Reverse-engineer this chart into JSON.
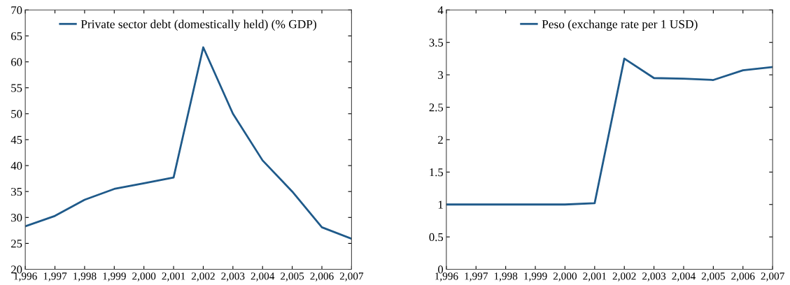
{
  "chart_data": [
    {
      "type": "line",
      "x": [
        1996,
        1997,
        1998,
        1999,
        2000,
        2001,
        2002,
        2003,
        2004,
        2005,
        2006,
        2007
      ],
      "series": [
        {
          "name": "Private sector debt (domestically held) (% GDP)",
          "color": "#1f5a8a",
          "values": [
            28.3,
            30.3,
            33.4,
            35.5,
            36.6,
            37.7,
            62.8,
            50.0,
            41.0,
            35.0,
            28.1,
            25.9
          ]
        }
      ],
      "xlim": [
        1996,
        2007
      ],
      "xticks": [
        {
          "value": 1996,
          "label": "1,996"
        },
        {
          "value": 1997,
          "label": "1,997"
        },
        {
          "value": 1998,
          "label": "1,998"
        },
        {
          "value": 1999,
          "label": "1,999"
        },
        {
          "value": 2000,
          "label": "2,000"
        },
        {
          "value": 2001,
          "label": "2,001"
        },
        {
          "value": 2002,
          "label": "2,002"
        },
        {
          "value": 2003,
          "label": "2,003"
        },
        {
          "value": 2004,
          "label": "2,004"
        },
        {
          "value": 2005,
          "label": "2,005"
        },
        {
          "value": 2006,
          "label": "2,006"
        },
        {
          "value": 2007,
          "label": "2,007"
        }
      ],
      "ylim": [
        20,
        70
      ],
      "yticks": [
        20,
        25,
        30,
        35,
        40,
        45,
        50,
        55,
        60,
        65,
        70
      ],
      "legend": "top",
      "grid": false,
      "marker": "none",
      "line_style": "solid"
    },
    {
      "type": "line",
      "x": [
        1996,
        1997,
        1998,
        1999,
        2000,
        2001,
        2002,
        2003,
        2004,
        2005,
        2006,
        2007
      ],
      "series": [
        {
          "name": "Peso (exchange rate per 1 USD)",
          "color": "#1f5a8a",
          "values": [
            1.0,
            1.0,
            1.0,
            1.0,
            1.0,
            1.02,
            3.25,
            2.95,
            2.94,
            2.92,
            3.07,
            3.12
          ]
        }
      ],
      "xlim": [
        1996,
        2007
      ],
      "xticks": [
        {
          "value": 1996,
          "label": "1,996"
        },
        {
          "value": 1997,
          "label": "1,997"
        },
        {
          "value": 1998,
          "label": "1,998"
        },
        {
          "value": 1999,
          "label": "1,999"
        },
        {
          "value": 2000,
          "label": "2,000"
        },
        {
          "value": 2001,
          "label": "2,001"
        },
        {
          "value": 2002,
          "label": "2,002"
        },
        {
          "value": 2003,
          "label": "2,003"
        },
        {
          "value": 2004,
          "label": "2,004"
        },
        {
          "value": 2005,
          "label": "2,005"
        },
        {
          "value": 2006,
          "label": "2,006"
        },
        {
          "value": 2007,
          "label": "2,007"
        }
      ],
      "ylim": [
        0,
        4
      ],
      "yticks": [
        0,
        0.5,
        1,
        1.5,
        2,
        2.5,
        3,
        3.5,
        4
      ],
      "legend": "top",
      "grid": false,
      "marker": "none",
      "line_style": "solid"
    }
  ]
}
